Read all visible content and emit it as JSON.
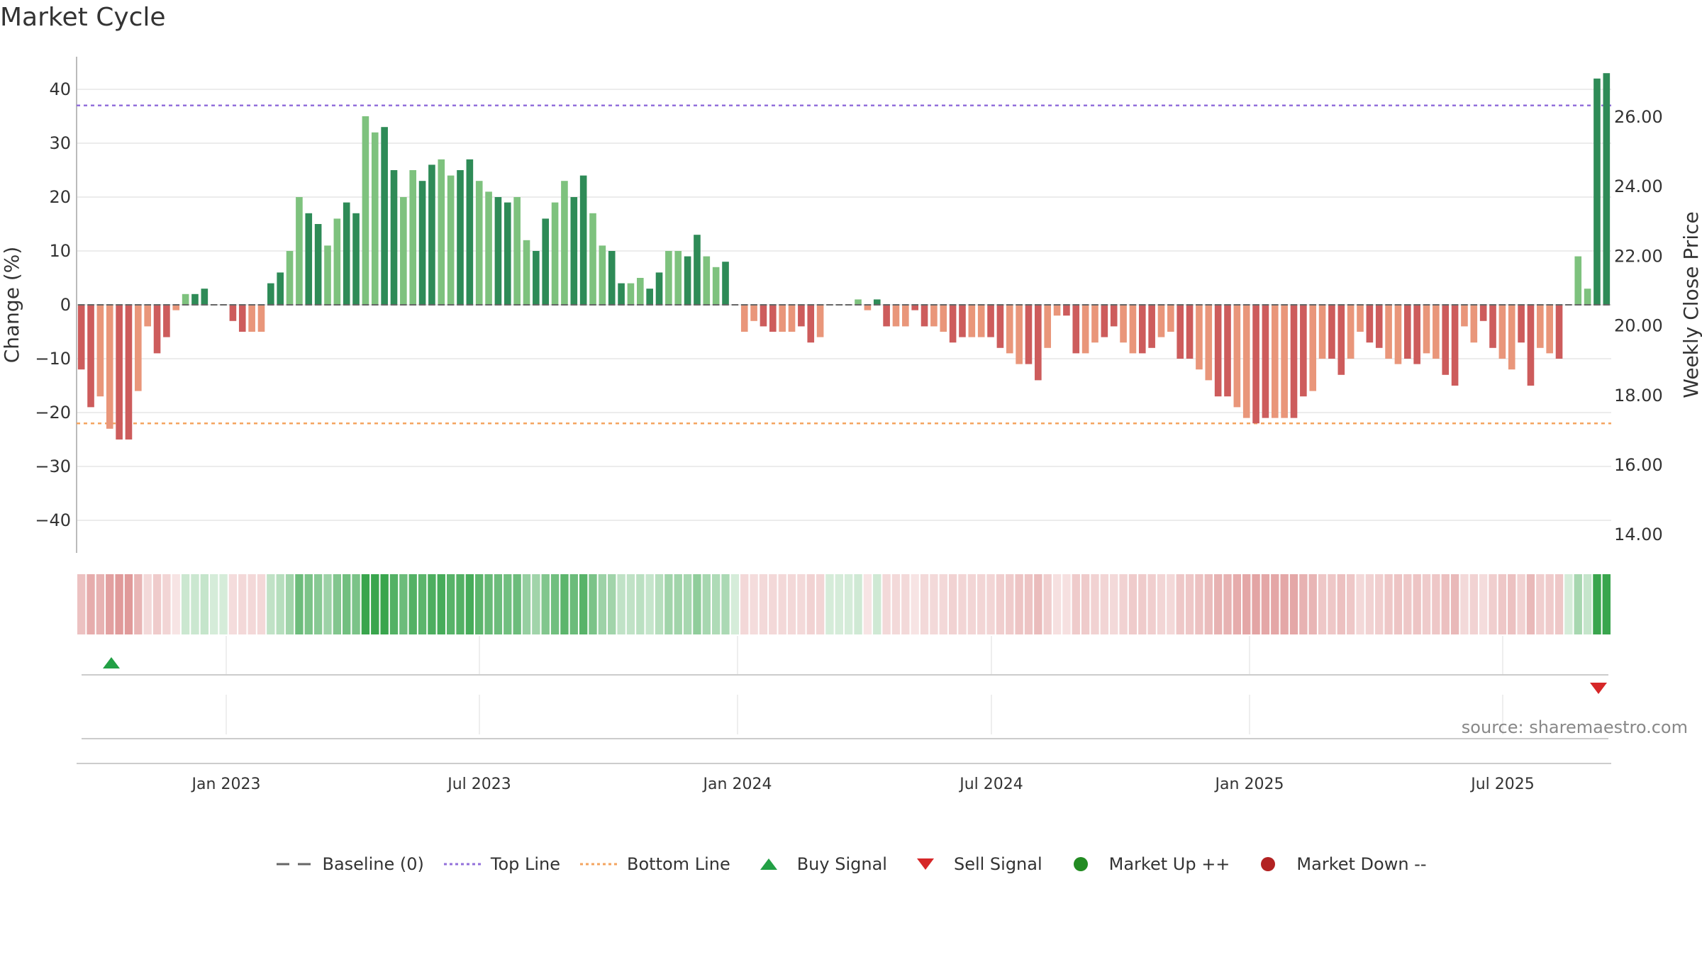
{
  "title": "Market Cycle",
  "source": "source: sharemaestro.com",
  "colors": {
    "up_strong": "#2e8b57",
    "up_light": "#7ec27e",
    "down_strong": "#cd5c5c",
    "down_light": "#e9967a",
    "top_line": "#9370db",
    "bottom_line": "#f4a460",
    "buy": "#22a045",
    "sell": "#d62728",
    "market_up": "#228b22",
    "market_down": "#b22222",
    "baseline": "#666666"
  },
  "legend": [
    {
      "key": "baseline",
      "label": "Baseline (0)",
      "symbol": "dash"
    },
    {
      "key": "top",
      "label": "Top Line",
      "symbol": "dot-purple"
    },
    {
      "key": "bottom",
      "label": "Bottom Line",
      "symbol": "dot-orange"
    },
    {
      "key": "buy",
      "label": "Buy Signal",
      "symbol": "tri-up"
    },
    {
      "key": "sell",
      "label": "Sell Signal",
      "symbol": "tri-down"
    },
    {
      "key": "mup",
      "label": "Market Up ++",
      "symbol": "circle-green"
    },
    {
      "key": "mdown",
      "label": "Market Down --",
      "symbol": "circle-red"
    }
  ],
  "chart_data": {
    "type": "bar",
    "ylabel_left": "Change (%)",
    "ylabel_right": "Weekly Close Price",
    "ylim_left": [
      -46,
      46
    ],
    "yticks_left": [
      40,
      30,
      20,
      10,
      0,
      -10,
      -20,
      -30,
      -40
    ],
    "ytick_labels_left": [
      "40",
      "30",
      "20",
      "10",
      "0",
      "−10",
      "−20",
      "−30",
      "−40"
    ],
    "yticks_right": [
      "26.00",
      "24.00",
      "22.00",
      "20.00",
      "18.00",
      "16.00",
      "14.00"
    ],
    "x_tick_labels": [
      "Jan 2023",
      "Jul 2023",
      "Jan 2024",
      "Jul 2024",
      "Jan 2025",
      "Jul 2025"
    ],
    "top_line": 37,
    "bottom_line": -22,
    "values": [
      -12,
      -19,
      -17,
      -23,
      -25,
      -25,
      -16,
      -4,
      -9,
      -6,
      -1,
      2,
      2,
      3,
      0,
      0,
      -3,
      -5,
      -5,
      -5,
      4,
      6,
      10,
      20,
      17,
      15,
      11,
      16,
      19,
      17,
      35,
      32,
      33,
      25,
      20,
      25,
      23,
      26,
      27,
      24,
      25,
      27,
      23,
      21,
      20,
      19,
      20,
      12,
      10,
      16,
      19,
      23,
      20,
      24,
      17,
      11,
      10,
      4,
      4,
      5,
      3,
      6,
      10,
      10,
      9,
      13,
      9,
      7,
      8,
      0,
      -5,
      -3,
      -4,
      -5,
      -5,
      -5,
      -4,
      -7,
      -6,
      0,
      0,
      0,
      1,
      -1,
      1,
      -4,
      -4,
      -4,
      -1,
      -4,
      -4,
      -5,
      -7,
      -6,
      -6,
      -6,
      -6,
      -8,
      -9,
      -11,
      -11,
      -14,
      -8,
      -2,
      -2,
      -9,
      -9,
      -7,
      -6,
      -4,
      -7,
      -9,
      -9,
      -8,
      -6,
      -5,
      -10,
      -10,
      -12,
      -14,
      -17,
      -17,
      -19,
      -21,
      -22,
      -21,
      -21,
      -21,
      -21,
      -17,
      -16,
      -10,
      -10,
      -13,
      -10,
      -5,
      -7,
      -8,
      -10,
      -11,
      -10,
      -11,
      -9,
      -10,
      -13,
      -15,
      -4,
      -7,
      -3,
      -8,
      -10,
      -12,
      -7,
      -15,
      -8,
      -9,
      -10,
      0,
      9,
      3,
      42,
      43
    ],
    "buy_signals": [
      "Oct 2022"
    ],
    "sell_signals": [
      "Sep 2025"
    ]
  }
}
